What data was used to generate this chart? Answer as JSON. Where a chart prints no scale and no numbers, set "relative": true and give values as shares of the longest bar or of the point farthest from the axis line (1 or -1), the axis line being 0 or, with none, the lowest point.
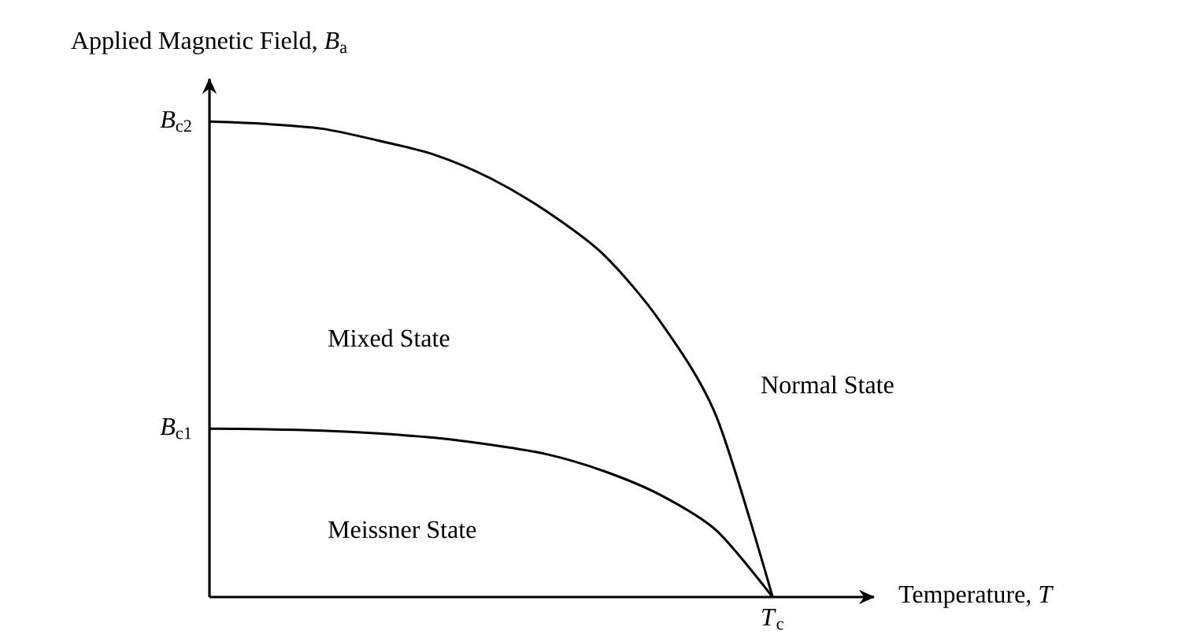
{
  "chart_data": {
    "type": "line",
    "relative": true,
    "xlabel": "Temperature, *T*",
    "ylabel": "Applied Magnetic Field, *B*$_{a}$",
    "categories": [
      null,
      null,
      null,
      null,
      null,
      null,
      null,
      null,
      null,
      null,
      null
    ],
    "series": [
      {
        "color": "#000000",
        "values": [
          1,
          0.995,
          0.985,
          0.96,
          0.93,
          0.88,
          0.81,
          0.72,
          0.58,
          0.38,
          0
        ]
      },
      {
        "color": "#000000",
        "values": [
          0.354,
          0.353,
          0.35,
          0.344,
          0.335,
          0.32,
          0.3,
          0.265,
          0.215,
          0.14,
          0
        ]
      }
    ],
    "annotations": [
      "*B*$_{c2}$",
      "*B*$_{c1}$",
      "*T*$_{c}$",
      "Mixed State",
      "Normal State",
      "Meissner State"
    ]
  }
}
